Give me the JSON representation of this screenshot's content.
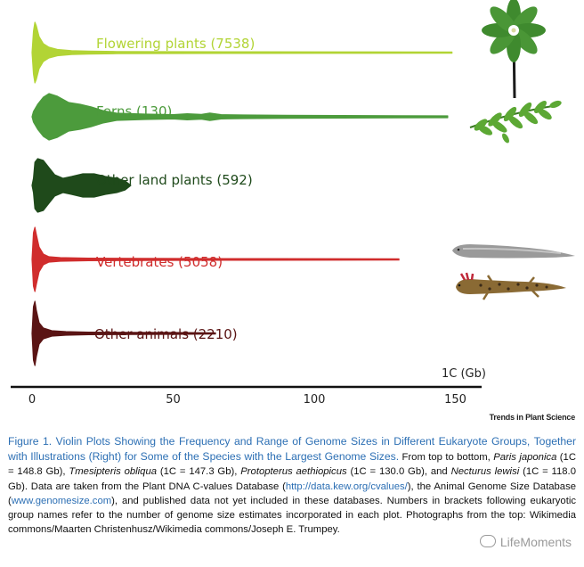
{
  "chart_data": {
    "type": "violin",
    "xlabel": "1C (Gb)",
    "xlim": [
      0,
      160
    ],
    "xticks": [
      0,
      50,
      100,
      150
    ],
    "series": [
      {
        "name": "Flowering plants (7538)",
        "color": "#b2d435",
        "max_value": 148.8,
        "profile": [
          [
            0,
            0
          ],
          [
            0.5,
            24
          ],
          [
            1,
            34
          ],
          [
            1.5,
            30
          ],
          [
            2.5,
            18
          ],
          [
            4,
            10
          ],
          [
            6,
            6
          ],
          [
            9,
            3.5
          ],
          [
            14,
            2.2
          ],
          [
            20,
            1.6
          ],
          [
            30,
            1.2
          ],
          [
            50,
            1
          ],
          [
            80,
            0.9
          ],
          [
            120,
            0.8
          ],
          [
            148.8,
            0.7
          ]
        ]
      },
      {
        "name": "Ferns (130)",
        "color": "#4c9b3c",
        "max_value": 147.3,
        "profile": [
          [
            0,
            0
          ],
          [
            0.5,
            6
          ],
          [
            2,
            14
          ],
          [
            4,
            22
          ],
          [
            6,
            26
          ],
          [
            9,
            23
          ],
          [
            13,
            16
          ],
          [
            17,
            14
          ],
          [
            21,
            11
          ],
          [
            25,
            7
          ],
          [
            30,
            4
          ],
          [
            40,
            3
          ],
          [
            50,
            2.4
          ],
          [
            55,
            3.4
          ],
          [
            60,
            2.6
          ],
          [
            63,
            4.2
          ],
          [
            67,
            2.4
          ],
          [
            75,
            2
          ],
          [
            90,
            1.6
          ],
          [
            110,
            1.4
          ],
          [
            130,
            1.2
          ],
          [
            147.3,
            1
          ]
        ]
      },
      {
        "name": "Other land plants (592)",
        "color": "#1f4a1b",
        "max_value": 35,
        "profile": [
          [
            0,
            0
          ],
          [
            0.5,
            8
          ],
          [
            1,
            26
          ],
          [
            2,
            30
          ],
          [
            4,
            28
          ],
          [
            6,
            20
          ],
          [
            8,
            12
          ],
          [
            11,
            8
          ],
          [
            14,
            10
          ],
          [
            18,
            13
          ],
          [
            22,
            13
          ],
          [
            26,
            10
          ],
          [
            30,
            8
          ],
          [
            33,
            5
          ],
          [
            35,
            0
          ]
        ]
      },
      {
        "name": "Vertebrates (5058)",
        "color": "#d02d2d",
        "max_value": 130,
        "profile": [
          [
            0,
            0
          ],
          [
            0.5,
            30
          ],
          [
            1,
            36
          ],
          [
            1.5,
            28
          ],
          [
            2.5,
            14
          ],
          [
            4,
            6
          ],
          [
            6,
            3
          ],
          [
            10,
            2
          ],
          [
            20,
            1.4
          ],
          [
            40,
            1.1
          ],
          [
            80,
            0.9
          ],
          [
            130,
            0.7
          ]
        ]
      },
      {
        "name": "Other animals (2210)",
        "color": "#5a1414",
        "max_value": 65,
        "profile": [
          [
            0,
            0
          ],
          [
            0.5,
            30
          ],
          [
            1,
            36
          ],
          [
            1.5,
            26
          ],
          [
            2.5,
            12
          ],
          [
            4,
            6
          ],
          [
            7,
            3
          ],
          [
            12,
            2
          ],
          [
            20,
            1.4
          ],
          [
            35,
            1.1
          ],
          [
            50,
            1
          ],
          [
            65,
            0.7
          ]
        ]
      }
    ]
  },
  "journal_name": "Trends in Plant Science",
  "caption": {
    "title": "Figure 1. Violin Plots Showing the Frequency and Range of Genome Sizes in Different Eukaryote Groups, Together with Illustrations (Right) for Some of the Species with the Largest Genome Sizes.",
    "t1": " From top to bottom, ",
    "sp1": "Paris japonica",
    "t2": " (1C = 148.8 Gb), ",
    "sp2": "Tmesipteris obliqua",
    "t3": " (1C = 147.3 Gb), ",
    "sp3": "Protopterus aethiopicus",
    "t4": " (1C = 130.0 Gb), and ",
    "sp4": "Necturus lewisi",
    "t5": " (1C = 118.0 Gb). Data are taken from the Plant DNA C-values Database (",
    "link1": "http://data.kew.org/cvalues/",
    "t6": "), the Animal Genome Size Database (",
    "link2": "www.genomesize.com",
    "t7": "), and published data not yet included in these databases. Numbers in brackets following eukaryotic group names refer to the number of genome size estimates incorporated in each plot. Photographs from the top: Wikimedia commons/Maarten Christenhusz/Wikimedia commons/Joseph E. Trumpey."
  },
  "watermark": "LifeMoments"
}
